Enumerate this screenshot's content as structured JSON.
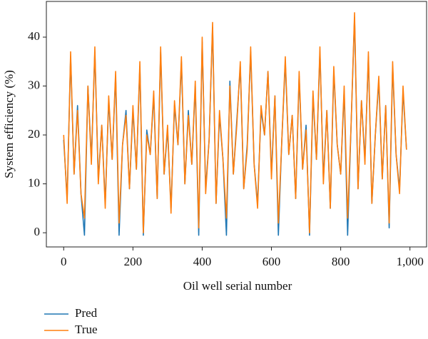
{
  "chart_data": {
    "type": "line",
    "xlabel": "Oil well serial number",
    "ylabel": "System efficiency (%)",
    "x": [
      0,
      10,
      20,
      30,
      40,
      50,
      60,
      70,
      80,
      90,
      100,
      110,
      120,
      130,
      140,
      150,
      160,
      170,
      180,
      190,
      200,
      210,
      220,
      230,
      240,
      250,
      260,
      270,
      280,
      290,
      300,
      310,
      320,
      330,
      340,
      350,
      360,
      370,
      380,
      390,
      400,
      410,
      420,
      430,
      440,
      450,
      460,
      470,
      480,
      490,
      500,
      510,
      520,
      530,
      540,
      550,
      560,
      570,
      580,
      590,
      600,
      610,
      620,
      630,
      640,
      650,
      660,
      670,
      680,
      690,
      700,
      710,
      720,
      730,
      740,
      750,
      760,
      770,
      780,
      790,
      800,
      810,
      820,
      830,
      840,
      850,
      860,
      870,
      880,
      890,
      900,
      910,
      920,
      930,
      940,
      950,
      960,
      970,
      980,
      990
    ],
    "series": [
      {
        "name": "Pred",
        "color": "#1f77b4",
        "values": [
          19,
          7,
          36,
          12,
          26,
          8,
          -0.5,
          30,
          15,
          37,
          11,
          22,
          6,
          27,
          15,
          32,
          -0.5,
          18,
          25,
          9,
          25,
          13,
          34,
          -0.5,
          21,
          16,
          28,
          7,
          37,
          12,
          21,
          5,
          26,
          18,
          35,
          10,
          25,
          14,
          30,
          -0.5,
          39,
          9,
          19,
          42,
          6,
          24,
          15,
          -0.5,
          31,
          12,
          23,
          34,
          9,
          18,
          37,
          14,
          6,
          25,
          20,
          33,
          12,
          28,
          -0.5,
          19,
          35,
          16,
          24,
          7,
          32,
          13,
          22,
          -0.5,
          28,
          15,
          37,
          11,
          25,
          5,
          33,
          18,
          12,
          29,
          -0.5,
          22,
          44,
          9,
          27,
          15,
          36,
          6,
          20,
          31,
          11,
          26,
          1,
          34,
          16,
          9,
          29,
          17
        ]
      },
      {
        "name": "True",
        "color": "#ff7f0e",
        "values": [
          20,
          6,
          37,
          12,
          25,
          8,
          3,
          30,
          14,
          38,
          10,
          22,
          5,
          28,
          15,
          33,
          2,
          18,
          24,
          9,
          26,
          13,
          35,
          0,
          20,
          16,
          29,
          7,
          38,
          12,
          22,
          4,
          27,
          18,
          36,
          10,
          24,
          14,
          31,
          1,
          40,
          8,
          19,
          43,
          6,
          25,
          15,
          3,
          30,
          12,
          22,
          35,
          9,
          17,
          38,
          14,
          5,
          26,
          20,
          33,
          11,
          28,
          2,
          19,
          36,
          16,
          24,
          7,
          33,
          13,
          21,
          0,
          29,
          15,
          38,
          10,
          25,
          5,
          34,
          18,
          12,
          30,
          3,
          22,
          45,
          9,
          27,
          14,
          37,
          6,
          20,
          32,
          11,
          26,
          2,
          35,
          16,
          8,
          30,
          17
        ]
      }
    ],
    "xlim": [
      -50,
      1048
    ],
    "ylim": [
      -2.9,
      47.3
    ],
    "xticks": [
      0,
      200,
      400,
      600,
      800,
      {
        "value": 1000,
        "label": "1,000"
      }
    ],
    "yticks": [
      0,
      10,
      20,
      30,
      40
    ],
    "legend": "below-left"
  }
}
